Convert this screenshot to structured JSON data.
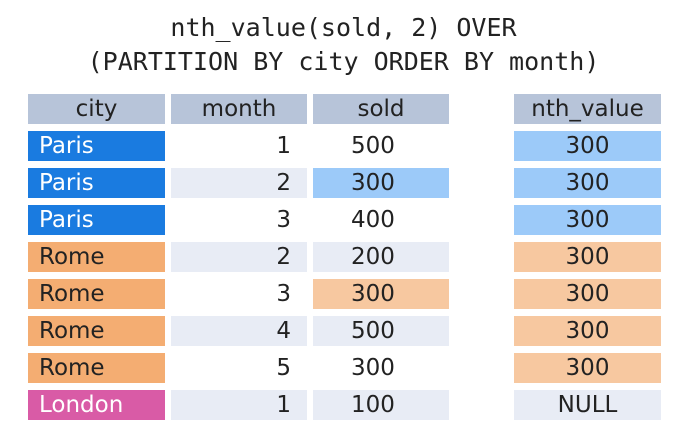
{
  "title": {
    "line1": "nth_value(sold, 2) OVER",
    "line2": "(PARTITION BY city ORDER BY month)"
  },
  "headers": {
    "city": "city",
    "month": "month",
    "sold": "sold",
    "nth_value": "nth_value"
  },
  "colors": {
    "header": "#b7c4d9",
    "paris": "#1a7be0",
    "paris_light": "#9ccaf9",
    "rome": "#f4ad72",
    "rome_light": "#f7c8a0",
    "london": "#d95ba6",
    "stripe": "#e8ecf5"
  },
  "rows": [
    {
      "city": "Paris",
      "month": "1",
      "sold": "500",
      "nth_value": "300"
    },
    {
      "city": "Paris",
      "month": "2",
      "sold": "300",
      "nth_value": "300"
    },
    {
      "city": "Paris",
      "month": "3",
      "sold": "400",
      "nth_value": "300"
    },
    {
      "city": "Rome",
      "month": "2",
      "sold": "200",
      "nth_value": "300"
    },
    {
      "city": "Rome",
      "month": "3",
      "sold": "300",
      "nth_value": "300"
    },
    {
      "city": "Rome",
      "month": "4",
      "sold": "500",
      "nth_value": "300"
    },
    {
      "city": "Rome",
      "month": "5",
      "sold": "300",
      "nth_value": "300"
    },
    {
      "city": "London",
      "month": "1",
      "sold": "100",
      "nth_value": "NULL"
    }
  ]
}
